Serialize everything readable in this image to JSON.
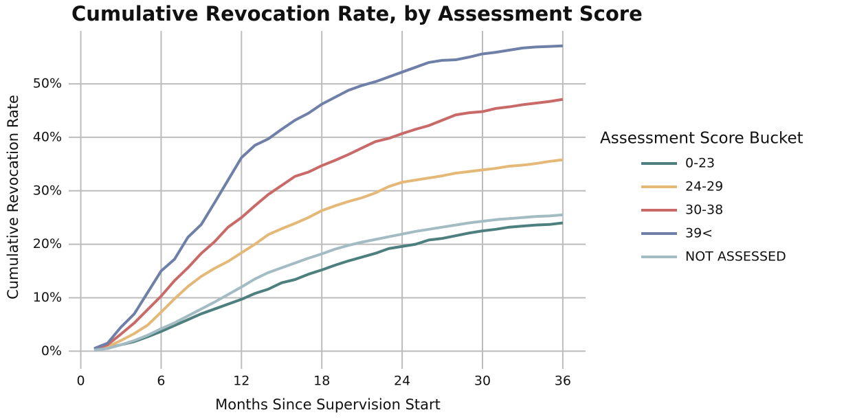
{
  "chart_data": {
    "type": "line",
    "title": "Cumulative Revocation Rate, by Assessment Score",
    "x_label": "Months Since Supervision Start",
    "y_label": "Cumulative Revocation Rate",
    "legend_title": "Assessment Score Bucket",
    "legend": "right",
    "grid": true,
    "x": [
      1,
      2,
      3,
      4,
      5,
      6,
      7,
      8,
      9,
      10,
      11,
      12,
      13,
      14,
      15,
      16,
      17,
      18,
      19,
      20,
      21,
      22,
      23,
      24,
      25,
      26,
      27,
      28,
      29,
      30,
      31,
      32,
      33,
      34,
      35,
      36
    ],
    "xlim": [
      -0.9,
      37.7
    ],
    "xticks": [
      0,
      6,
      12,
      18,
      24,
      30,
      36
    ],
    "ylim": [
      -3.3,
      59.9
    ],
    "yticks": [
      {
        "value": 0,
        "label": "0%"
      },
      {
        "value": 10,
        "label": "10%"
      },
      {
        "value": 20,
        "label": "20%"
      },
      {
        "value": 30,
        "label": "30%"
      },
      {
        "value": 40,
        "label": "40%"
      },
      {
        "value": 50,
        "label": "50%"
      }
    ],
    "series": [
      {
        "name": "0-23",
        "color": "#4e7f7f",
        "values": [
          0.2,
          0.6,
          1.2,
          1.8,
          2.7,
          3.7,
          4.8,
          5.9,
          7,
          7.9,
          8.8,
          9.7,
          10.8,
          11.6,
          12.8,
          13.4,
          14.4,
          15.2,
          16.1,
          16.9,
          17.6,
          18.3,
          19.2,
          19.6,
          20,
          20.8,
          21.1,
          21.6,
          22.1,
          22.5,
          22.8,
          23.2,
          23.4,
          23.6,
          23.7,
          24
        ]
      },
      {
        "name": "24-29",
        "color": "#e4b978",
        "values": [
          0.3,
          0.8,
          2,
          3.3,
          4.9,
          7.3,
          9.8,
          12.1,
          14,
          15.5,
          16.8,
          18.4,
          20,
          21.8,
          22.9,
          23.9,
          25,
          26.3,
          27.2,
          28,
          28.7,
          29.6,
          30.8,
          31.6,
          32,
          32.4,
          32.8,
          33.3,
          33.6,
          33.9,
          34.2,
          34.6,
          34.8,
          35.1,
          35.5,
          35.8
        ]
      },
      {
        "name": "30-38",
        "color": "#c96a68",
        "values": [
          0.4,
          1.2,
          3.2,
          5.3,
          7.8,
          10.3,
          13.2,
          15.6,
          18.3,
          20.5,
          23.2,
          25,
          27.2,
          29.3,
          31,
          32.7,
          33.5,
          34.7,
          35.7,
          36.8,
          38,
          39.2,
          39.8,
          40.7,
          41.5,
          42.2,
          43.2,
          44.2,
          44.6,
          44.8,
          45.4,
          45.7,
          46.1,
          46.4,
          46.7,
          47.1
        ]
      },
      {
        "name": "39<",
        "color": "#6e7fa8",
        "values": [
          0.5,
          1.5,
          4.5,
          7,
          11,
          15,
          17.2,
          21.3,
          23.7,
          27.8,
          32,
          36.2,
          38.5,
          39.7,
          41.5,
          43.2,
          44.5,
          46.2,
          47.5,
          48.8,
          49.7,
          50.4,
          51.3,
          52.2,
          53.1,
          54,
          54.4,
          54.5,
          55,
          55.6,
          55.9,
          56.3,
          56.7,
          56.9,
          57,
          57.1
        ]
      },
      {
        "name": "NOT ASSESSED",
        "color": "#a3bbc3",
        "values": [
          0.2,
          0.5,
          1.2,
          2,
          3,
          4.2,
          5.3,
          6.6,
          7.9,
          9.2,
          10.6,
          12,
          13.5,
          14.7,
          15.6,
          16.5,
          17.4,
          18.2,
          19.1,
          19.8,
          20.4,
          20.9,
          21.4,
          21.9,
          22.4,
          22.8,
          23.2,
          23.6,
          24,
          24.3,
          24.6,
          24.8,
          25,
          25.2,
          25.3,
          25.5
        ]
      }
    ]
  }
}
